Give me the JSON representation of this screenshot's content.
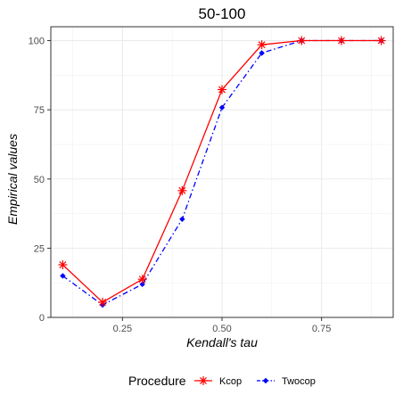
{
  "chart_data": {
    "type": "line",
    "title": "50-100",
    "xlabel": "Kendall's tau",
    "ylabel": "Empirical values",
    "xlim": [
      0.07,
      0.93
    ],
    "ylim": [
      0,
      105
    ],
    "x_ticks": [
      0.25,
      0.5,
      0.75
    ],
    "x_tick_labels": [
      "0.25",
      "0.50",
      "0.75"
    ],
    "y_ticks": [
      0,
      25,
      50,
      75,
      100
    ],
    "y_tick_labels": [
      "0",
      "25",
      "50",
      "75",
      "100"
    ],
    "grid": true,
    "legend_position": "bottom",
    "legend_title": "Procedure",
    "x": [
      0.1,
      0.2,
      0.3,
      0.4,
      0.5,
      0.6,
      0.7,
      0.8,
      0.9
    ],
    "series": [
      {
        "name": "Kcop",
        "values": [
          19,
          5.5,
          13.8,
          45.8,
          82.3,
          98.5,
          100,
          100,
          100
        ],
        "color": "#ff0000",
        "line_style": "solid",
        "marker": "asterisk"
      },
      {
        "name": "Twocop",
        "values": [
          15,
          4.5,
          12,
          35.5,
          75.8,
          95.5,
          100,
          100,
          100
        ],
        "color": "#0000ff",
        "line_style": "dashdot",
        "marker": "diamond"
      }
    ]
  }
}
